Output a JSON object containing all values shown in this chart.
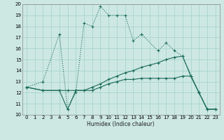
{
  "xlabel": "Humidex (Indice chaleur)",
  "bg_color": "#cde8e3",
  "grid_color": "#a8d4cc",
  "line_color": "#1a6b5a",
  "xlim": [
    -0.5,
    23.5
  ],
  "ylim": [
    10,
    20
  ],
  "xticks": [
    0,
    1,
    2,
    3,
    4,
    5,
    6,
    7,
    8,
    9,
    10,
    11,
    12,
    13,
    14,
    15,
    16,
    17,
    18,
    19,
    20,
    21,
    22,
    23
  ],
  "yticks": [
    10,
    11,
    12,
    13,
    14,
    15,
    16,
    17,
    18,
    19,
    20
  ],
  "curve1_x": [
    0,
    2,
    4,
    5,
    6,
    7,
    8,
    9,
    10,
    11,
    12,
    13,
    14,
    16,
    17,
    18,
    19,
    21,
    22,
    23
  ],
  "curve1_y": [
    12.5,
    13,
    17.3,
    10.5,
    12.0,
    18.3,
    18.0,
    19.8,
    19.0,
    19.0,
    19.0,
    16.7,
    17.3,
    15.8,
    16.5,
    15.8,
    15.3,
    12.0,
    10.5,
    10.5
  ],
  "curve2_x": [
    0,
    2,
    4,
    5,
    6,
    7,
    8,
    9,
    10,
    11,
    12,
    13,
    14,
    15,
    16,
    17,
    18,
    19,
    20,
    21,
    22,
    23
  ],
  "curve2_y": [
    12.5,
    12.2,
    12.2,
    12.2,
    12.2,
    12.2,
    12.5,
    12.8,
    13.2,
    13.5,
    13.8,
    14.0,
    14.3,
    14.5,
    14.7,
    15.0,
    15.2,
    15.3,
    13.5,
    12.0,
    10.5,
    10.5
  ],
  "curve3_x": [
    0,
    2,
    4,
    5,
    6,
    7,
    8,
    9,
    10,
    11,
    12,
    13,
    14,
    15,
    16,
    17,
    18,
    19,
    20,
    21,
    22,
    23
  ],
  "curve3_y": [
    12.5,
    12.2,
    12.2,
    10.5,
    12.2,
    12.2,
    12.2,
    12.5,
    12.8,
    13.0,
    13.2,
    13.2,
    13.3,
    13.3,
    13.3,
    13.3,
    13.3,
    13.5,
    13.5,
    12.0,
    10.5,
    10.5
  ]
}
